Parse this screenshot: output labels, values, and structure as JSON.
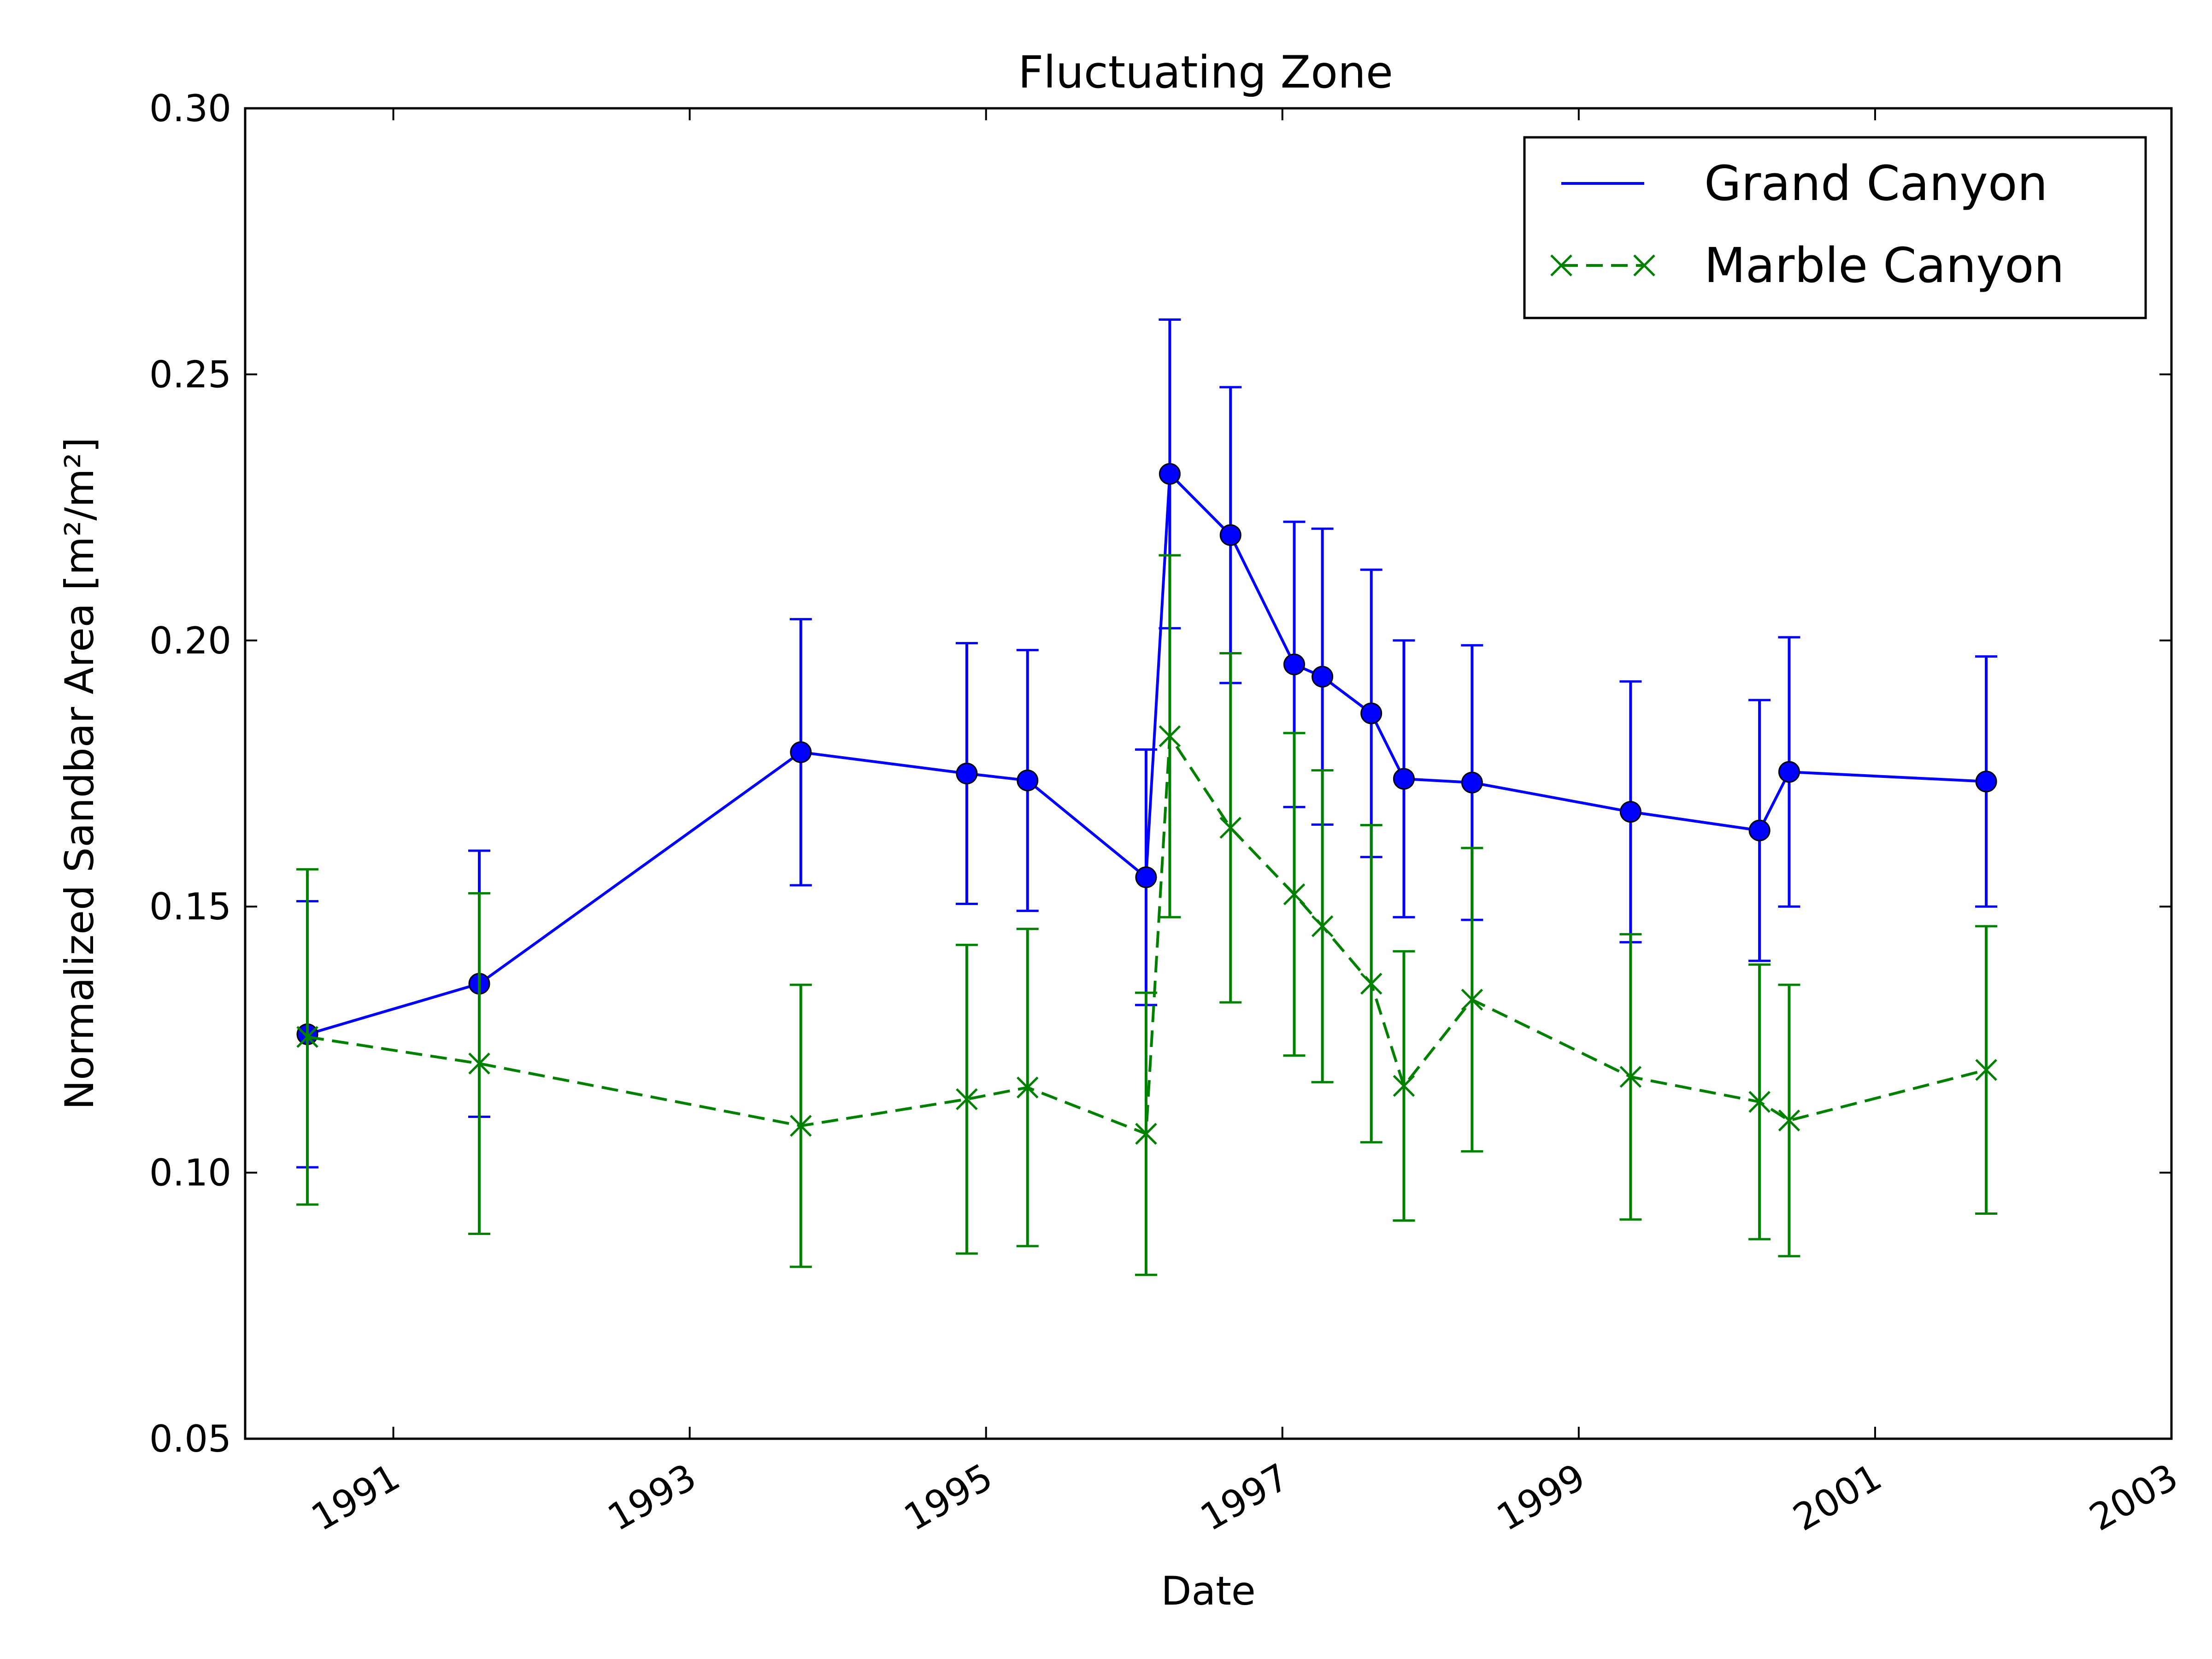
{
  "chart_data": {
    "type": "line",
    "title": "Fluctuating Zone",
    "xlabel": "Date",
    "ylabel": "Normalized Sandbar Area [m²/m²]",
    "xlim": [
      1990.0,
      2003.0
    ],
    "ylim": [
      0.05,
      0.3
    ],
    "x_ticks": [
      1991,
      1993,
      1995,
      1997,
      1999,
      2001,
      2003
    ],
    "x_tick_labels": [
      "1991",
      "1993",
      "1995",
      "1997",
      "1999",
      "2001",
      "2003"
    ],
    "y_ticks": [
      0.05,
      0.1,
      0.15,
      0.2,
      0.25,
      0.3
    ],
    "y_tick_labels": [
      "0.05",
      "0.10",
      "0.15",
      "0.20",
      "0.25",
      "0.30"
    ],
    "grid": false,
    "legend_position": "top-right",
    "series": [
      {
        "name": "Grand Canyon",
        "color": "#0000ff",
        "line_style": "solid",
        "marker": "circle",
        "x": [
          1990.42,
          1991.58,
          1993.75,
          1994.87,
          1995.28,
          1996.08,
          1996.24,
          1996.65,
          1997.08,
          1997.27,
          1997.6,
          1997.82,
          1998.28,
          1999.35,
          2000.22,
          2000.42,
          2001.75
        ],
        "y": [
          0.126,
          0.1355,
          0.179,
          0.175,
          0.1737,
          0.1555,
          0.2313,
          0.2198,
          0.1955,
          0.1932,
          0.1863,
          0.174,
          0.1733,
          0.1678,
          0.1643,
          0.1753,
          0.1735
        ],
        "y_err": [
          0.025,
          0.025,
          0.025,
          0.0245,
          0.0245,
          0.024,
          0.029,
          0.0278,
          0.0268,
          0.0278,
          0.027,
          0.026,
          0.0258,
          0.0245,
          0.0245,
          0.0253,
          0.0235
        ]
      },
      {
        "name": "Marble Canyon",
        "color": "#008000",
        "line_style": "dashed",
        "marker": "x",
        "x": [
          1990.42,
          1991.58,
          1993.75,
          1994.87,
          1995.28,
          1996.08,
          1996.24,
          1996.65,
          1997.08,
          1997.27,
          1997.6,
          1997.82,
          1998.28,
          1999.35,
          2000.22,
          2000.42,
          2001.75
        ],
        "y": [
          0.1255,
          0.1205,
          0.1088,
          0.1138,
          0.116,
          0.1073,
          0.182,
          0.1648,
          0.1523,
          0.1463,
          0.1355,
          0.1163,
          0.1325,
          0.118,
          0.1133,
          0.1098,
          0.1193
        ],
        "y_err": [
          0.0315,
          0.032,
          0.0265,
          0.029,
          0.0298,
          0.0265,
          0.034,
          0.0328,
          0.0303,
          0.0293,
          0.0298,
          0.0253,
          0.0285,
          0.0268,
          0.0258,
          0.0255,
          0.027
        ]
      }
    ]
  }
}
